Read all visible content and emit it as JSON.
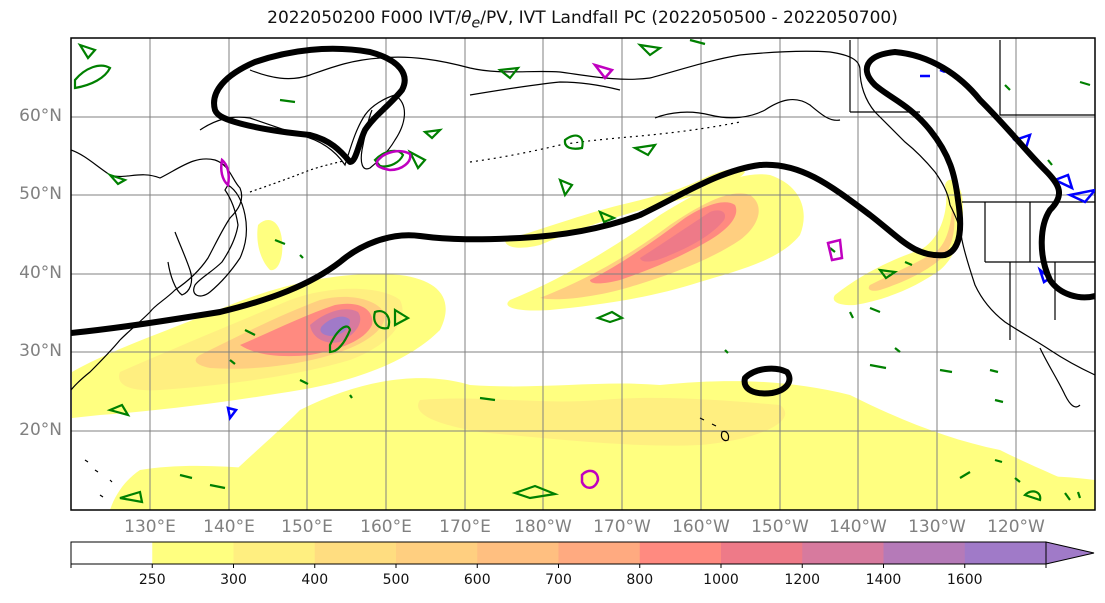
{
  "title": "2022050200 F000 IVT/θe/PV, IVT Landfall PC (2022050500 - 2022050700)",
  "map": {
    "lat_ticks": [
      "60°N",
      "50°N",
      "40°N",
      "30°N",
      "20°N"
    ],
    "lon_ticks": [
      "130°E",
      "140°E",
      "150°E",
      "160°E",
      "170°E",
      "180°W",
      "170°W",
      "160°W",
      "150°W",
      "140°W",
      "130°W",
      "120°W"
    ],
    "extent": {
      "lon_min": 120,
      "lon_max": 250,
      "lat_min": 10,
      "lat_max": 70
    },
    "colors": {
      "land_outline": "#000000",
      "pc_contour": "#000000",
      "theta_e": "#008000",
      "pv_positive": "#c000c0",
      "pv_negative": "#0000ff",
      "grid": "#808080"
    }
  },
  "colorbar": {
    "levels": [
      "250",
      "300",
      "400",
      "500",
      "600",
      "700",
      "800",
      "1000",
      "1200",
      "1400",
      "1600"
    ],
    "colors": [
      "#ffffff",
      "#ffff80",
      "#ffef80",
      "#ffdd80",
      "#ffcf80",
      "#ffbf80",
      "#ffaa80",
      "#ff8a80",
      "#ee7a88",
      "#d77a9e",
      "#b57ab8",
      "#a07ac8"
    ]
  }
}
